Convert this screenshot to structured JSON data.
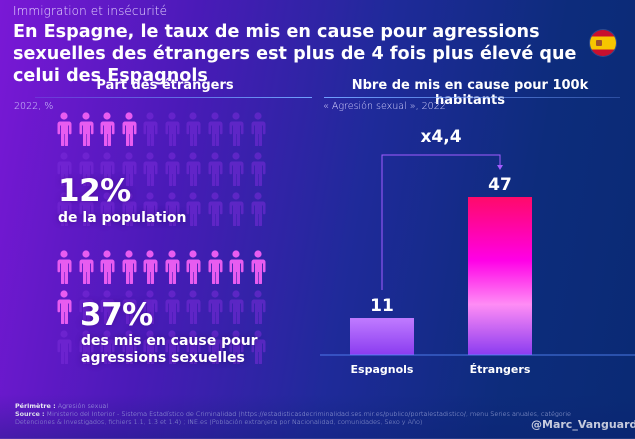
{
  "header": {
    "kicker": "Immigration et insécurité",
    "title": "En Espagne, le taux de mis en cause pour agressions sexuelles des étrangers est plus de 4 fois plus élevé que celui des Espagnols",
    "flag_icon": "spain-flag-icon"
  },
  "left_panel": {
    "title": "Part des étrangers",
    "subtitle": "2022, %",
    "blocks": [
      {
        "value_label": "12%",
        "value": 12,
        "description": "de la population",
        "icons_total": 30,
        "icons_highlighted": 4
      },
      {
        "value_label": "37%",
        "value": 37,
        "description": "des mis en cause pour agressions sexuelles",
        "icons_total": 30,
        "icons_highlighted": 11
      }
    ],
    "colors": {
      "highlight": "#e85cf0",
      "dim": "#7a2cd8"
    }
  },
  "right_panel": {
    "title": "Nbre de mis en cause pour 100k habitants",
    "subtitle": "« Agresión sexual », 2022"
  },
  "chart_data": {
    "type": "bar",
    "title": "Nbre de mis en cause pour 100k habitants",
    "subtitle": "« Agresión sexual », 2022",
    "categories": [
      "Espagnols",
      "Étrangers"
    ],
    "values": [
      11,
      47
    ],
    "value_labels": [
      "11",
      "47"
    ],
    "annotation": "x4,4",
    "xlabel": "",
    "ylabel": "",
    "ylim": [
      0,
      47
    ],
    "grid": false,
    "colors": {
      "espagnols": [
        "#c07bff",
        "#8a3cf0"
      ],
      "etrangers": [
        "#ff0a6a",
        "#ff00e6",
        "#ff8cf5",
        "#8a3cf0"
      ],
      "annotation_line": "#a35cff"
    }
  },
  "footer": {
    "perimetre_label": "Périmètre :",
    "perimetre_value": "Agresión sexual",
    "source_label": "Source :",
    "source_value": "Ministerio del Interior - Sistema Estadístico de Criminalidad (https://estadisticasdecriminalidad.ses.mir.es/publico/portalestadistico/, menu Series anuales, catégorie Detenciones & Investigados, fichiers 1.1, 1.3 et 1.4) ; INE.es (Población extranjera por Nacionalidad, comunidades, Sexo y Año)",
    "handle": "@Marc_Vanguard"
  }
}
